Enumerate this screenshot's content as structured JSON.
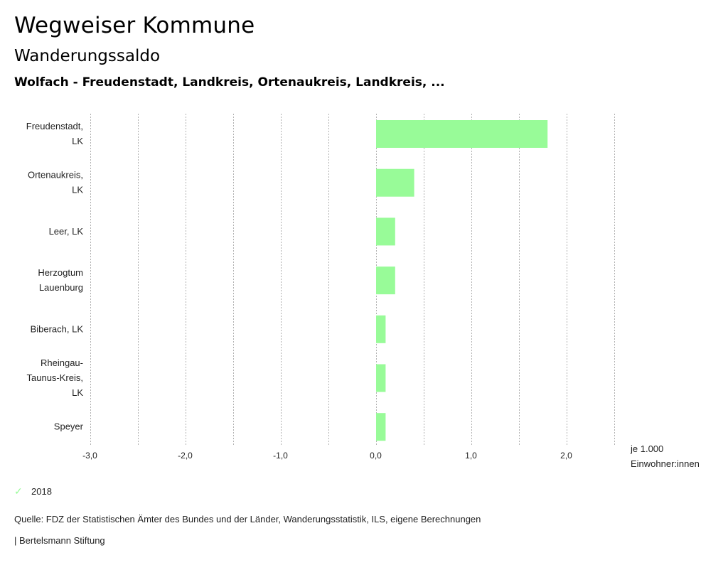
{
  "header": {
    "title": "Wegweiser Kommune",
    "subtitle": "Wanderungssaldo",
    "region": "Wolfach - Freudenstadt, Landkreis, Ortenaukreis, Landkreis, ..."
  },
  "chart_data": {
    "type": "bar",
    "orientation": "horizontal",
    "title": "Wanderungssaldo",
    "categories": [
      [
        "Freudenstadt,",
        "LK"
      ],
      [
        "Ortenaukreis,",
        "LK"
      ],
      [
        "Leer, LK"
      ],
      [
        "Herzogtum",
        "Lauenburg"
      ],
      [
        "Biberach, LK"
      ],
      [
        "Rheingau-",
        "Taunus-Kreis,",
        "LK"
      ],
      [
        "Speyer"
      ]
    ],
    "series": [
      {
        "name": "2018",
        "color": "#98fb98",
        "values": [
          1.8,
          0.4,
          0.2,
          0.2,
          0.1,
          0.1,
          0.1
        ]
      }
    ],
    "xlim": [
      -3.0,
      2.5
    ],
    "x_ticks": [
      -3.0,
      -2.0,
      -1.0,
      0.0,
      1.0,
      2.0
    ],
    "x_tick_labels": [
      "-3,0",
      "-2,0",
      "-1,0",
      "0,0",
      "1,0",
      "2,0"
    ],
    "grid_step": 0.5,
    "grid": true,
    "xlabel": [
      "je 1.000",
      "Einwohner:innen"
    ],
    "legend_position": "bottom-left"
  },
  "legend": {
    "label": "2018",
    "icon": "check-icon",
    "color": "#98fb98"
  },
  "footer": {
    "source": "Quelle: FDZ der Statistischen Ämter des Bundes und der Länder, Wanderungsstatistik, ILS, eigene Berechnungen",
    "credit": "| Bertelsmann Stiftung"
  }
}
